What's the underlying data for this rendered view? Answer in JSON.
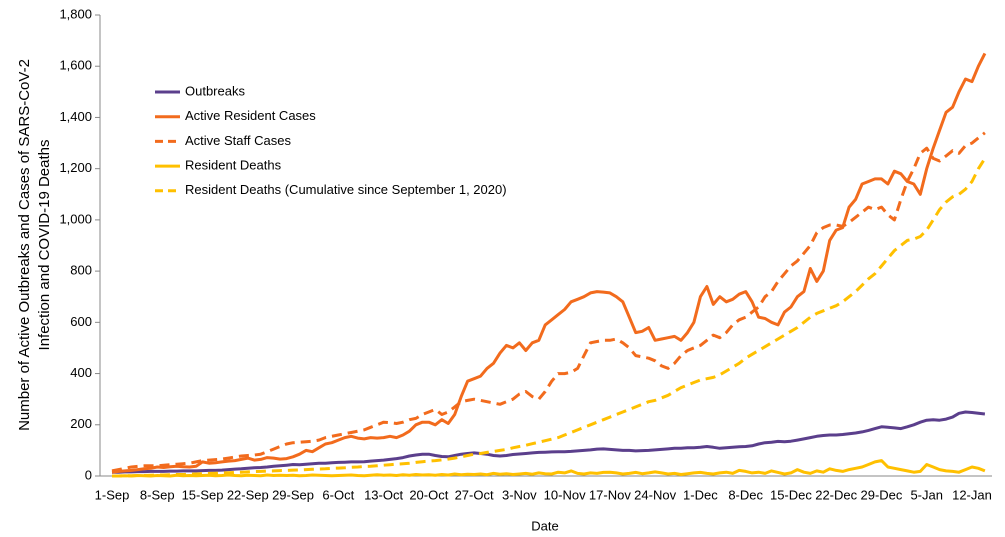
{
  "chart_data": {
    "type": "line",
    "x_label": "Date",
    "y_label": [
      "Number of Active Outbreaks and Cases of SARS-CoV-2",
      "Infection and COVID-19 Deaths"
    ],
    "categories": [
      "1-Sep",
      null,
      null,
      null,
      null,
      null,
      null,
      "8-Sep",
      null,
      null,
      null,
      null,
      null,
      null,
      "15-Sep",
      null,
      null,
      null,
      null,
      null,
      null,
      "22-Sep",
      null,
      null,
      null,
      null,
      null,
      null,
      "29-Sep",
      null,
      null,
      null,
      null,
      null,
      null,
      "6-Oct",
      null,
      null,
      null,
      null,
      null,
      null,
      "13-Oct",
      null,
      null,
      null,
      null,
      null,
      null,
      "20-Oct",
      null,
      null,
      null,
      null,
      null,
      null,
      "27-Oct",
      null,
      null,
      null,
      null,
      null,
      null,
      "3-Nov",
      null,
      null,
      null,
      null,
      null,
      null,
      "10-Nov",
      null,
      null,
      null,
      null,
      null,
      null,
      "17-Nov",
      null,
      null,
      null,
      null,
      null,
      null,
      "24-Nov",
      null,
      null,
      null,
      null,
      null,
      null,
      "1-Dec",
      null,
      null,
      null,
      null,
      null,
      null,
      "8-Dec",
      null,
      null,
      null,
      null,
      null,
      null,
      "15-Dec",
      null,
      null,
      null,
      null,
      null,
      null,
      "22-Dec",
      null,
      null,
      null,
      null,
      null,
      null,
      "29-Dec",
      null,
      null,
      null,
      null,
      null,
      null,
      "5-Jan",
      null,
      null,
      null,
      null,
      null,
      null,
      "12-Jan",
      null,
      null
    ],
    "ylim": [
      0,
      1800
    ],
    "yticks": [
      0,
      200,
      400,
      600,
      800,
      {
        "value": 1000,
        "label": "1,000"
      },
      {
        "value": 1200,
        "label": "1,200"
      },
      {
        "value": 1400,
        "label": "1,400"
      },
      {
        "value": 1600,
        "label": "1,600"
      },
      {
        "value": 1800,
        "label": "1,800"
      }
    ],
    "legend": "upper left",
    "series": [
      {
        "name": "Outbreaks",
        "color": "#5b3f8c",
        "dashed": false,
        "values": [
          15,
          15,
          16,
          16,
          17,
          17,
          18,
          18,
          18,
          19,
          19,
          20,
          20,
          20,
          21,
          22,
          22,
          23,
          25,
          27,
          28,
          30,
          32,
          33,
          35,
          38,
          40,
          42,
          45,
          44,
          46,
          48,
          50,
          50,
          52,
          53,
          54,
          55,
          55,
          56,
          58,
          60,
          62,
          65,
          68,
          72,
          78,
          82,
          85,
          85,
          80,
          76,
          75,
          80,
          85,
          88,
          90,
          88,
          85,
          80,
          78,
          80,
          84,
          86,
          88,
          90,
          92,
          93,
          94,
          95,
          95,
          96,
          98,
          100,
          102,
          105,
          106,
          104,
          102,
          100,
          100,
          98,
          99,
          100,
          102,
          104,
          106,
          108,
          108,
          110,
          110,
          112,
          115,
          112,
          108,
          110,
          112,
          114,
          115,
          118,
          125,
          130,
          132,
          135,
          134,
          136,
          140,
          145,
          150,
          155,
          158,
          160,
          160,
          162,
          165,
          168,
          172,
          178,
          185,
          192,
          190,
          188,
          185,
          192,
          200,
          210,
          218,
          220,
          218,
          222,
          230,
          245,
          250,
          248,
          245,
          242
        ]
      },
      {
        "name": "Active Resident Cases",
        "color": "#f26b1d",
        "dashed": false,
        "values": [
          15,
          18,
          20,
          22,
          25,
          28,
          30,
          35,
          33,
          36,
          38,
          36,
          35,
          38,
          55,
          50,
          52,
          55,
          58,
          60,
          65,
          70,
          62,
          65,
          72,
          70,
          66,
          68,
          75,
          85,
          100,
          95,
          110,
          125,
          130,
          140,
          150,
          155,
          148,
          145,
          150,
          148,
          150,
          155,
          150,
          160,
          175,
          200,
          210,
          210,
          200,
          220,
          205,
          240,
          310,
          370,
          380,
          390,
          420,
          440,
          480,
          510,
          500,
          520,
          490,
          520,
          530,
          590,
          610,
          630,
          650,
          680,
          690,
          700,
          715,
          720,
          718,
          715,
          700,
          680,
          620,
          560,
          565,
          580,
          530,
          535,
          540,
          545,
          530,
          560,
          600,
          700,
          740,
          670,
          700,
          680,
          690,
          710,
          720,
          680,
          620,
          615,
          600,
          590,
          640,
          660,
          700,
          720,
          810,
          760,
          800,
          920,
          960,
          970,
          1050,
          1080,
          1140,
          1150,
          1160,
          1160,
          1140,
          1190,
          1180,
          1150,
          1140,
          1100,
          1200,
          1280,
          1350,
          1420,
          1440,
          1500,
          1550,
          1540,
          1600,
          1650
        ]
      },
      {
        "name": "Active Staff Cases",
        "color": "#f26b1d",
        "dashed": true,
        "values": [
          20,
          25,
          30,
          35,
          38,
          40,
          40,
          40,
          42,
          44,
          46,
          48,
          50,
          55,
          60,
          62,
          64,
          66,
          70,
          74,
          78,
          80,
          82,
          85,
          95,
          105,
          115,
          125,
          130,
          132,
          134,
          136,
          140,
          150,
          155,
          160,
          165,
          170,
          175,
          180,
          190,
          200,
          210,
          208,
          205,
          210,
          220,
          225,
          240,
          250,
          260,
          240,
          250,
          270,
          290,
          295,
          300,
          295,
          290,
          285,
          280,
          290,
          300,
          320,
          330,
          310,
          300,
          330,
          370,
          400,
          400,
          405,
          420,
          470,
          520,
          525,
          530,
          530,
          535,
          520,
          500,
          470,
          465,
          460,
          450,
          430,
          420,
          440,
          470,
          490,
          500,
          510,
          530,
          550,
          540,
          560,
          590,
          610,
          620,
          640,
          660,
          700,
          720,
          760,
          790,
          820,
          840,
          870,
          900,
          950,
          970,
          980,
          980,
          975,
          990,
          1010,
          1030,
          1050,
          1040,
          1050,
          1020,
          1000,
          1080,
          1150,
          1200,
          1260,
          1280,
          1240,
          1230,
          1250,
          1270,
          1260,
          1290,
          1300,
          1320,
          1340
        ]
      },
      {
        "name": "Resident Deaths",
        "color": "#ffc000",
        "dashed": false,
        "values": [
          0,
          0,
          1,
          0,
          2,
          1,
          0,
          2,
          1,
          0,
          3,
          1,
          2,
          1,
          2,
          3,
          1,
          2,
          4,
          2,
          1,
          3,
          2,
          1,
          4,
          2,
          3,
          2,
          3,
          1,
          2,
          4,
          3,
          2,
          1,
          2,
          3,
          4,
          2,
          1,
          3,
          5,
          3,
          4,
          2,
          5,
          3,
          6,
          4,
          5,
          3,
          6,
          4,
          8,
          5,
          7,
          6,
          8,
          5,
          10,
          7,
          9,
          6,
          8,
          10,
          7,
          12,
          9,
          8,
          15,
          12,
          20,
          10,
          8,
          12,
          10,
          14,
          15,
          12,
          8,
          10,
          14,
          9,
          12,
          16,
          12,
          8,
          10,
          6,
          9,
          12,
          14,
          10,
          8,
          12,
          15,
          10,
          22,
          18,
          12,
          15,
          10,
          20,
          14,
          8,
          12,
          25,
          15,
          10,
          20,
          15,
          28,
          22,
          18,
          25,
          30,
          35,
          45,
          55,
          60,
          35,
          30,
          25,
          20,
          15,
          18,
          45,
          35,
          25,
          20,
          18,
          15,
          25,
          35,
          30,
          20
        ]
      },
      {
        "name": "Resident Deaths (Cumulative since September 1, 2020)",
        "color": "#ffc000",
        "dashed": true,
        "values": [
          0,
          0,
          1,
          1,
          2,
          2,
          3,
          4,
          4,
          5,
          6,
          6,
          7,
          8,
          9,
          10,
          11,
          12,
          13,
          14,
          15,
          16,
          17,
          18,
          19,
          20,
          21,
          22,
          23,
          24,
          25,
          26,
          27,
          28,
          30,
          31,
          32,
          34,
          35,
          37,
          38,
          40,
          42,
          44,
          46,
          48,
          50,
          53,
          56,
          58,
          60,
          63,
          66,
          70,
          75,
          80,
          85,
          88,
          92,
          96,
          100,
          104,
          110,
          115,
          120,
          126,
          132,
          138,
          144,
          150,
          160,
          170,
          180,
          190,
          200,
          210,
          220,
          230,
          240,
          250,
          260,
          270,
          280,
          290,
          295,
          305,
          315,
          330,
          345,
          355,
          365,
          375,
          380,
          385,
          395,
          410,
          425,
          440,
          460,
          475,
          490,
          505,
          520,
          535,
          550,
          565,
          580,
          600,
          620,
          635,
          645,
          655,
          665,
          680,
          700,
          720,
          745,
          770,
          790,
          820,
          850,
          880,
          900,
          920,
          925,
          935,
          960,
          1000,
          1040,
          1070,
          1090,
          1100,
          1120,
          1150,
          1200,
          1240
        ]
      }
    ]
  }
}
